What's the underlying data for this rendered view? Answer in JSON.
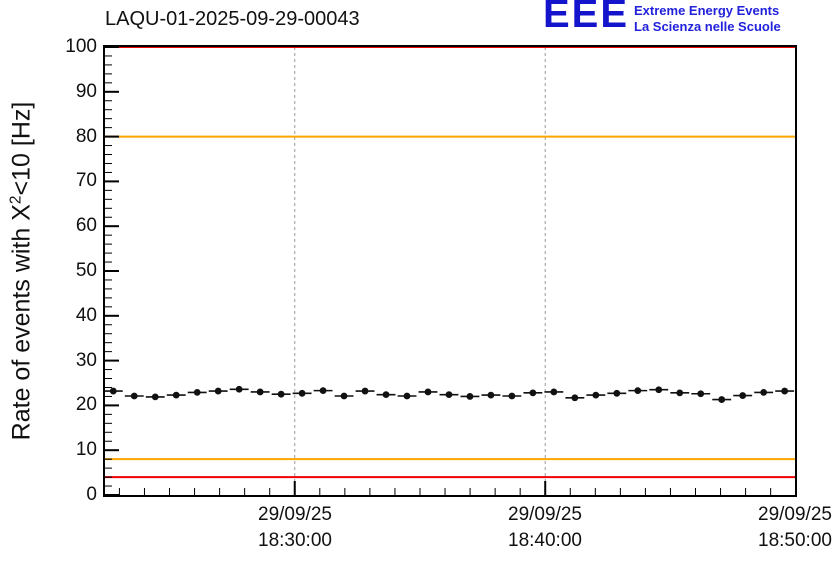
{
  "header": {
    "title": "LAQU-01-2025-09-29-00043",
    "logo": {
      "acronym": "EEE",
      "line1": "Extreme Energy Events",
      "line2": "La Scienza nelle Scuole",
      "color": "#1414cc"
    }
  },
  "chart_data": {
    "type": "scatter",
    "title": "LAQU-01-2025-09-29-00043",
    "ylabel": {
      "prefix": "Rate of events with X",
      "sup": "2",
      "suffix": "<10 [Hz]"
    },
    "ylim": [
      0,
      100
    ],
    "y_major_step": 10,
    "y_minor_step": 2,
    "y_tick_labels": [
      "0",
      "10",
      "20",
      "30",
      "40",
      "50",
      "60",
      "70",
      "80",
      "90",
      "100"
    ],
    "x_tick_labels": [
      {
        "date": "29/09/25",
        "time": "18:30:00"
      },
      {
        "date": "29/09/25",
        "time": "18:40:00"
      },
      {
        "date": "29/09/25",
        "time": "18:50:00"
      }
    ],
    "x_axis": {
      "major_fracs": [
        0.275,
        0.638,
        1.0
      ],
      "minor_divisions": 10
    },
    "grid": {
      "vertical_dashed": true,
      "color": "#999999"
    },
    "reference_lines": [
      {
        "y": 100,
        "color": "#ee0000"
      },
      {
        "y": 80,
        "color": "#ffa500"
      },
      {
        "y": 8,
        "color": "#ffa500"
      },
      {
        "y": 4,
        "color": "#ee0000"
      }
    ],
    "series": [
      {
        "name": "event-rate",
        "color": "#111111",
        "marker": "circle",
        "x_start_frac": 0.012,
        "x_end_frac": 0.985,
        "yerr": 0.5,
        "values": [
          23.2,
          22.1,
          21.9,
          22.3,
          22.9,
          23.2,
          23.6,
          23.0,
          22.5,
          22.7,
          23.3,
          22.1,
          23.2,
          22.4,
          22.1,
          23.0,
          22.4,
          22.0,
          22.3,
          22.1,
          22.8,
          23.0,
          21.7,
          22.3,
          22.7,
          23.3,
          23.5,
          22.8,
          22.6,
          21.3,
          22.2,
          22.9,
          23.2
        ]
      }
    ]
  }
}
